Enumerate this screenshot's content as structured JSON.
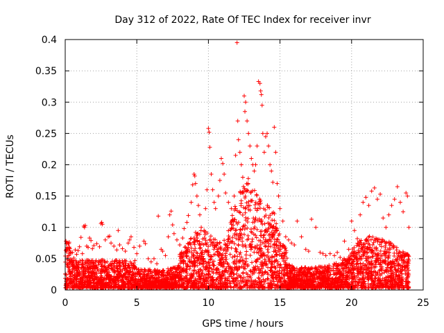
{
  "chart_data": {
    "type": "scatter",
    "title": "Day 312 of 2022, Rate Of TEC Index for receiver invr",
    "xlabel": "GPS time / hours",
    "ylabel": "ROTI / TECUs",
    "xlim": [
      0,
      25
    ],
    "ylim": [
      0,
      0.4
    ],
    "xticks": [
      0,
      5,
      10,
      15,
      20,
      25
    ],
    "yticks": [
      0,
      0.05,
      0.1,
      0.15,
      0.2,
      0.25,
      0.3,
      0.35,
      0.4
    ],
    "ytick_labels": [
      "0",
      "0.05",
      "0.1",
      "0.15",
      "0.2",
      "0.25",
      "0.3",
      "0.35",
      "0.4"
    ],
    "grid": true,
    "marker": "plus",
    "color": "#ff0000",
    "series": [
      {
        "values": [
          [
            0.05,
            0.078
          ],
          [
            0.1,
            0.075
          ],
          [
            0.1,
            0.061
          ],
          [
            0.15,
            0.048
          ],
          [
            0.25,
            0.055
          ],
          [
            0.3,
            0.043
          ],
          [
            0.4,
            0.059
          ],
          [
            0.5,
            0.06
          ],
          [
            0.6,
            0.051
          ],
          [
            0.7,
            0.064
          ],
          [
            0.8,
            0.057
          ],
          [
            0.9,
            0.063
          ],
          [
            1.0,
            0.069
          ],
          [
            1.1,
            0.084
          ],
          [
            1.2,
            0.058
          ],
          [
            1.3,
            0.102
          ],
          [
            1.35,
            0.1
          ],
          [
            1.4,
            0.103
          ],
          [
            1.5,
            0.07
          ],
          [
            1.6,
            0.068
          ],
          [
            1.7,
            0.083
          ],
          [
            1.8,
            0.079
          ],
          [
            1.9,
            0.066
          ],
          [
            2.0,
            0.071
          ],
          [
            2.2,
            0.074
          ],
          [
            2.4,
            0.069
          ],
          [
            2.5,
            0.106
          ],
          [
            2.55,
            0.108
          ],
          [
            2.6,
            0.105
          ],
          [
            2.8,
            0.08
          ],
          [
            3.0,
            0.085
          ],
          [
            3.1,
            0.086
          ],
          [
            3.2,
            0.075
          ],
          [
            3.4,
            0.07
          ],
          [
            3.6,
            0.064
          ],
          [
            3.8,
            0.072
          ],
          [
            3.7,
            0.095
          ],
          [
            4.0,
            0.066
          ],
          [
            4.2,
            0.062
          ],
          [
            4.4,
            0.075
          ],
          [
            4.5,
            0.08
          ],
          [
            4.6,
            0.085
          ],
          [
            4.8,
            0.068
          ],
          [
            5.0,
            0.058
          ],
          [
            5.2,
            0.07
          ],
          [
            5.5,
            0.078
          ],
          [
            5.6,
            0.074
          ],
          [
            5.8,
            0.05
          ],
          [
            6.0,
            0.045
          ],
          [
            6.2,
            0.05
          ],
          [
            6.4,
            0.042
          ],
          [
            6.5,
            0.118
          ],
          [
            6.7,
            0.065
          ],
          [
            6.8,
            0.062
          ],
          [
            7.0,
            0.055
          ],
          [
            7.2,
            0.085
          ],
          [
            7.3,
            0.12
          ],
          [
            7.4,
            0.126
          ],
          [
            7.5,
            0.104
          ],
          [
            7.6,
            0.09
          ],
          [
            7.8,
            0.08
          ],
          [
            8.0,
            0.072
          ],
          [
            8.2,
            0.083
          ],
          [
            8.3,
            0.098
          ],
          [
            8.5,
            0.108
          ],
          [
            8.6,
            0.119
          ],
          [
            8.8,
            0.14
          ],
          [
            8.9,
            0.168
          ],
          [
            9.0,
            0.185
          ],
          [
            9.05,
            0.182
          ],
          [
            9.1,
            0.17
          ],
          [
            9.2,
            0.15
          ],
          [
            9.3,
            0.135
          ],
          [
            9.4,
            0.12
          ],
          [
            9.5,
            0.1
          ],
          [
            9.7,
            0.095
          ],
          [
            9.8,
            0.13
          ],
          [
            9.9,
            0.16
          ],
          [
            10.0,
            0.258
          ],
          [
            10.05,
            0.252
          ],
          [
            10.1,
            0.228
          ],
          [
            10.2,
            0.185
          ],
          [
            10.3,
            0.16
          ],
          [
            10.4,
            0.14
          ],
          [
            10.5,
            0.13
          ],
          [
            10.7,
            0.15
          ],
          [
            10.8,
            0.175
          ],
          [
            10.9,
            0.21
          ],
          [
            11.0,
            0.202
          ],
          [
            11.1,
            0.185
          ],
          [
            11.2,
            0.155
          ],
          [
            11.4,
            0.14
          ],
          [
            11.6,
            0.13
          ],
          [
            11.8,
            0.15
          ],
          [
            11.9,
            0.215
          ],
          [
            12.0,
            0.395
          ],
          [
            12.05,
            0.27
          ],
          [
            12.1,
            0.24
          ],
          [
            12.2,
            0.22
          ],
          [
            12.3,
            0.2
          ],
          [
            12.4,
            0.18
          ],
          [
            12.5,
            0.31
          ],
          [
            12.55,
            0.285
          ],
          [
            12.6,
            0.3
          ],
          [
            12.7,
            0.27
          ],
          [
            12.8,
            0.25
          ],
          [
            12.9,
            0.23
          ],
          [
            13.0,
            0.21
          ],
          [
            13.1,
            0.2
          ],
          [
            13.2,
            0.19
          ],
          [
            13.3,
            0.2
          ],
          [
            13.4,
            0.23
          ],
          [
            13.5,
            0.333
          ],
          [
            13.6,
            0.33
          ],
          [
            13.65,
            0.318
          ],
          [
            13.7,
            0.312
          ],
          [
            13.75,
            0.295
          ],
          [
            13.8,
            0.25
          ],
          [
            13.9,
            0.22
          ],
          [
            14.0,
            0.245
          ],
          [
            14.1,
            0.25
          ],
          [
            14.2,
            0.23
          ],
          [
            14.3,
            0.2
          ],
          [
            14.4,
            0.19
          ],
          [
            14.5,
            0.172
          ],
          [
            14.6,
            0.26
          ],
          [
            14.7,
            0.22
          ],
          [
            14.8,
            0.17
          ],
          [
            14.9,
            0.15
          ],
          [
            15.0,
            0.13
          ],
          [
            15.2,
            0.11
          ],
          [
            15.4,
            0.085
          ],
          [
            15.6,
            0.08
          ],
          [
            15.8,
            0.075
          ],
          [
            16.0,
            0.072
          ],
          [
            16.2,
            0.11
          ],
          [
            16.5,
            0.085
          ],
          [
            16.8,
            0.065
          ],
          [
            17.0,
            0.062
          ],
          [
            17.2,
            0.113
          ],
          [
            17.5,
            0.1
          ],
          [
            17.8,
            0.06
          ],
          [
            18.0,
            0.058
          ],
          [
            18.2,
            0.055
          ],
          [
            18.5,
            0.058
          ],
          [
            18.8,
            0.055
          ],
          [
            19.0,
            0.06
          ],
          [
            19.2,
            0.052
          ],
          [
            19.5,
            0.078
          ],
          [
            19.8,
            0.065
          ],
          [
            20.0,
            0.11
          ],
          [
            20.2,
            0.095
          ],
          [
            20.4,
            0.082
          ],
          [
            20.6,
            0.12
          ],
          [
            20.8,
            0.14
          ],
          [
            21.0,
            0.148
          ],
          [
            21.2,
            0.135
          ],
          [
            21.4,
            0.158
          ],
          [
            21.6,
            0.163
          ],
          [
            21.8,
            0.145
          ],
          [
            22.0,
            0.153
          ],
          [
            22.2,
            0.115
          ],
          [
            22.4,
            0.1
          ],
          [
            22.6,
            0.12
          ],
          [
            22.8,
            0.135
          ],
          [
            23.0,
            0.145
          ],
          [
            23.2,
            0.165
          ],
          [
            23.4,
            0.14
          ],
          [
            23.6,
            0.125
          ],
          [
            23.8,
            0.155
          ],
          [
            23.9,
            0.15
          ],
          [
            24.0,
            0.1
          ]
        ]
      }
    ]
  }
}
